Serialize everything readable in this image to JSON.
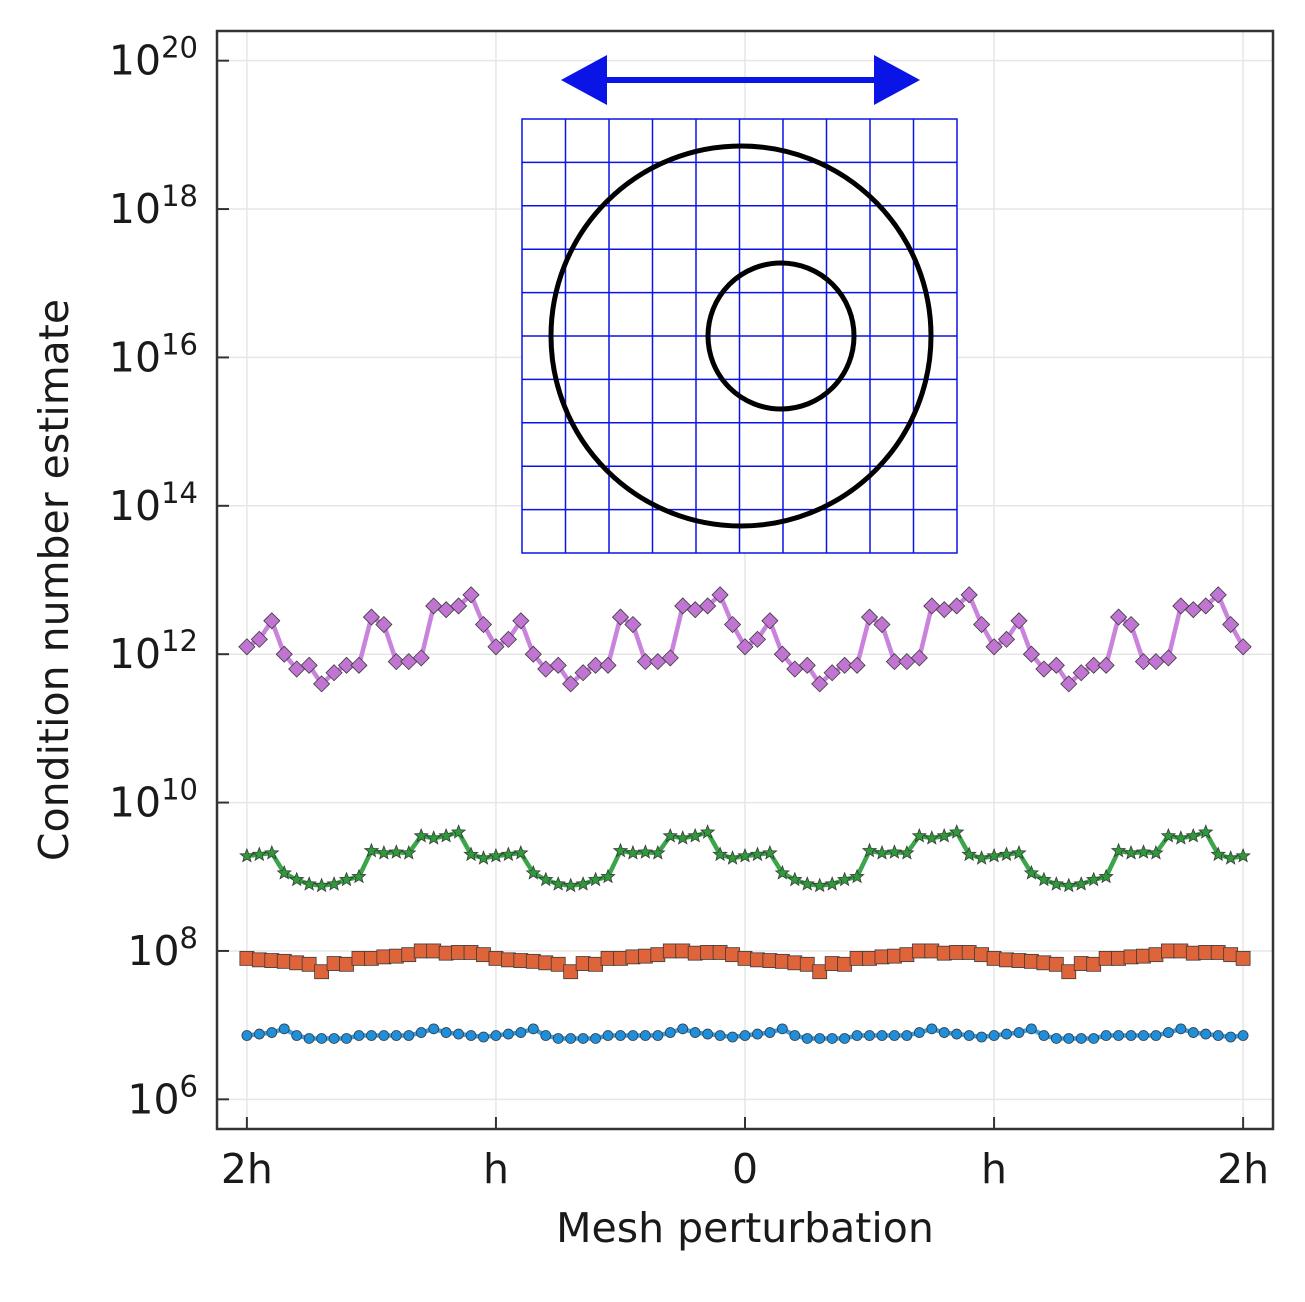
{
  "chart_data": {
    "type": "line",
    "xlabel": "Mesh perturbation",
    "ylabel": "Condition number estimate",
    "yscale": "log",
    "ylim_log10": [
      5.6,
      20.4
    ],
    "xlim": [
      -2.12,
      2.12
    ],
    "x_ticks": [
      {
        "value": -2,
        "label": "2h"
      },
      {
        "value": -1,
        "label": "h"
      },
      {
        "value": 0,
        "label": "0"
      },
      {
        "value": 1,
        "label": "h"
      },
      {
        "value": 2,
        "label": "2h"
      }
    ],
    "y_ticks": [
      {
        "exp": 6,
        "base": "10",
        "sup": "6"
      },
      {
        "exp": 8,
        "base": "10",
        "sup": "8"
      },
      {
        "exp": 10,
        "base": "10",
        "sup": "10"
      },
      {
        "exp": 12,
        "base": "10",
        "sup": "12"
      },
      {
        "exp": 14,
        "base": "10",
        "sup": "14"
      },
      {
        "exp": 16,
        "base": "10",
        "sup": "16"
      },
      {
        "exp": 18,
        "base": "10",
        "sup": "18"
      },
      {
        "exp": 20,
        "base": "10",
        "sup": "20"
      }
    ],
    "grid": true,
    "legend": "none",
    "series_colors": {
      "blue": "#1f8fdc",
      "orange": "#e0643a",
      "green": "#2e9a3a",
      "purple": "#c075d2"
    },
    "x_range": [
      -2,
      2
    ],
    "points_per_series": 81,
    "series": [
      {
        "marker": "circle",
        "color": "#1f8fdc",
        "log10_period_h": [
          6.86,
          6.88,
          6.9,
          6.95,
          6.86,
          6.82,
          6.82,
          6.82,
          6.82,
          6.86,
          6.86,
          6.86,
          6.86,
          6.86,
          6.9,
          6.95,
          6.9,
          6.88,
          6.86,
          6.84
        ]
      },
      {
        "marker": "square",
        "color": "#e0643a",
        "log10_period_h": [
          7.9,
          7.88,
          7.87,
          7.86,
          7.84,
          7.82,
          7.72,
          7.83,
          7.82,
          7.9,
          7.9,
          7.92,
          7.93,
          7.95,
          8.0,
          8.0,
          7.97,
          7.98,
          7.98,
          7.95
        ]
      },
      {
        "marker": "star",
        "color": "#2e9a3a",
        "log10_period_h": [
          9.28,
          9.3,
          9.32,
          9.05,
          8.96,
          8.9,
          8.88,
          8.9,
          8.96,
          9.0,
          9.35,
          9.32,
          9.33,
          9.32,
          9.55,
          9.52,
          9.55,
          9.6,
          9.3,
          9.25
        ]
      },
      {
        "marker": "diamond",
        "color": "#c075d2",
        "log10_period_h": [
          12.1,
          12.2,
          12.45,
          12.0,
          11.8,
          11.85,
          11.6,
          11.75,
          11.85,
          11.85,
          12.5,
          12.4,
          11.9,
          11.9,
          11.95,
          12.65,
          12.6,
          12.65,
          12.8,
          12.4
        ]
      }
    ],
    "inset": {
      "grid_cells": 10,
      "grid_color": "#0a14e6",
      "arrow_color": "#0a14e6",
      "circle_color": "#000000"
    }
  }
}
